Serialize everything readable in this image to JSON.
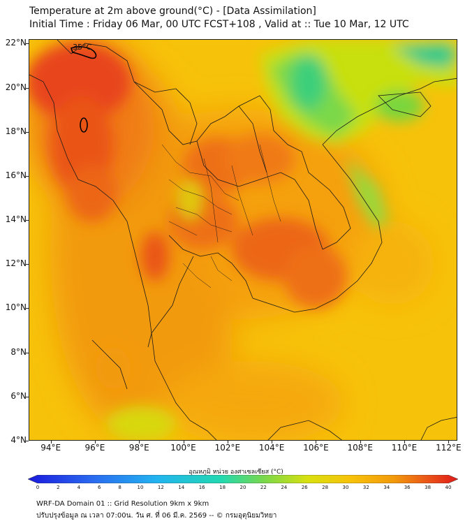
{
  "header": {
    "title_line1": "Temperature at 2m above ground(°C) - [Data Assimilation]",
    "title_line2": "Initial Time : Friday 06 Mar, 00 UTC FCST+108 , Valid at :: Tue 10 Mar, 12 UTC"
  },
  "map": {
    "lat_labels": [
      "22°N",
      "20°N",
      "18°N",
      "16°N",
      "14°N",
      "12°N",
      "10°N",
      "8°N",
      "6°N",
      "4°N"
    ],
    "lon_labels": [
      "94°E",
      "96°E",
      "98°E",
      "100°E",
      "102°E",
      "104°E",
      "106°E",
      "108°E",
      "110°E",
      "112°E"
    ],
    "lat_range": [
      4,
      22.2
    ],
    "lon_range": [
      93,
      112.4
    ],
    "contour_label": "35°C",
    "colors": {
      "hot": "#e8451a",
      "warm": "#f07a12",
      "mid": "#f5a00c",
      "base": "#f7c20a",
      "cool": "#c8e00e",
      "cold": "#22c88c",
      "border": "#1a1a1a"
    }
  },
  "colorbar": {
    "title": "อุณหภูมิ หน่วย องศาเซลเซียส (°C)",
    "min": 0,
    "max": 40,
    "tick_labels": [
      "0",
      "2",
      "4",
      "6",
      "8",
      "10",
      "12",
      "14",
      "16",
      "18",
      "20",
      "22",
      "24",
      "26",
      "28",
      "30",
      "32",
      "34",
      "36",
      "38",
      "40"
    ]
  },
  "footer": {
    "line1": "WRF-DA Domain 01 :: Grid Resolution 9km x 9km",
    "line2": "ปรับปรุงข้อมูล ณ เวลา 07:00น. วัน ศ. ที่ 06 มี.ค. 2569 -- © กรมอุตุนิยมวิทยา"
  }
}
